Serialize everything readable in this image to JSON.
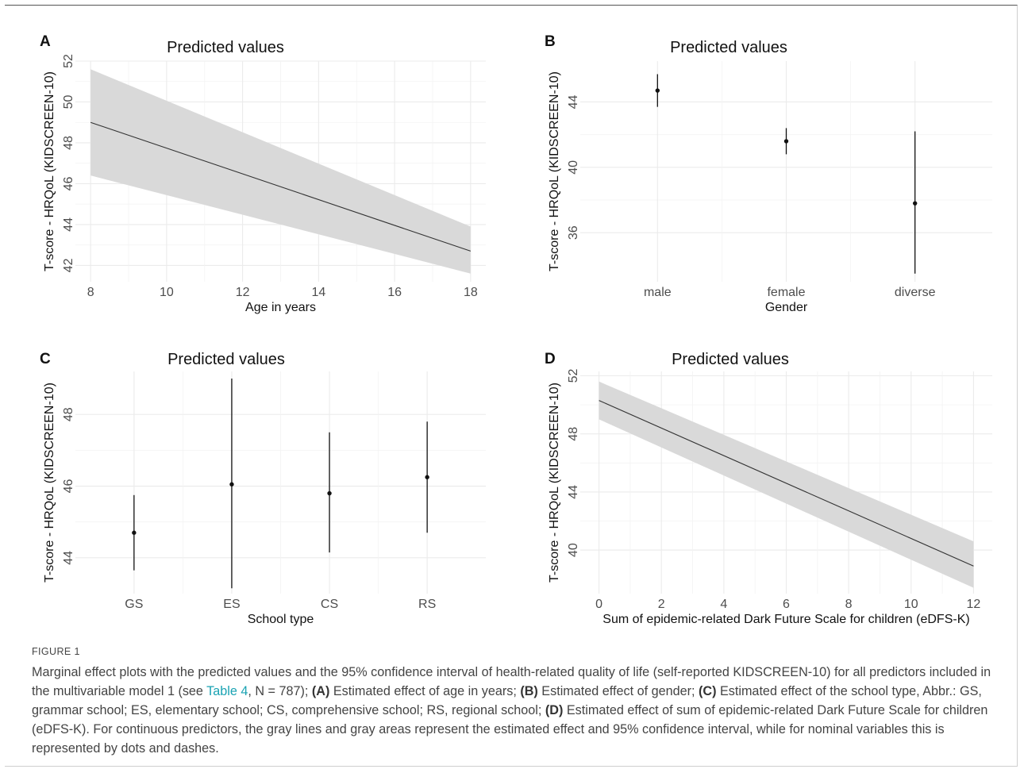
{
  "figure": {
    "label": "FIGURE 1",
    "caption": {
      "intro": "Marginal effect plots with the predicted values and the 95% confidence interval of health-related quality of life (self-reported KIDSCREEN-10) for all predictors included in the multivariable model 1 (see ",
      "table_link": "Table 4",
      "n_text": ", N = 787); ",
      "a_label": "(A)",
      "a_text": " Estimated effect of age in years; ",
      "b_label": "(B)",
      "b_text": " Estimated effect of gender; ",
      "c_label": "(C)",
      "c_text": " Estimated effect of the school type, Abbr.: GS, grammar school; ES, elementary school; CS, comprehensive school; RS, regional school; ",
      "d_label": "(D)",
      "d_text": " Estimated effect of sum of epidemic-related Dark Future Scale for children (eDFS-K). For continuous predictors, the gray lines and gray areas represent the estimated effect and 95% confidence interval, while for nominal variables this is represented by dots and dashes."
    },
    "colors": {
      "ribbon": "#d9d9d9",
      "line": "#333333",
      "grid": "#ebebeb",
      "link": "#1aa3b3"
    }
  },
  "chart_data": [
    {
      "panel": "A",
      "type": "line",
      "title": "Predicted values",
      "xlabel": "Age in years",
      "ylabel": "T-score - HRQoL (KIDSCREEN-10)",
      "xlim": [
        7.6,
        18.4
      ],
      "ylim": [
        41.2,
        52.0
      ],
      "xticks": [
        8,
        10,
        12,
        14,
        16,
        18
      ],
      "yticks": [
        42,
        44,
        46,
        48,
        50,
        52
      ],
      "series": [
        {
          "x": [
            8,
            18
          ],
          "y": [
            49.0,
            42.7
          ],
          "lower": [
            46.4,
            41.6
          ],
          "upper": [
            51.6,
            43.9
          ]
        }
      ],
      "grid": true
    },
    {
      "panel": "B",
      "type": "scatter",
      "title": "Predicted values",
      "xlabel": "Gender",
      "ylabel": "T-score - HRQoL (KIDSCREEN-10)",
      "categories": [
        "male",
        "female",
        "diverse"
      ],
      "ylim": [
        33.0,
        46.5
      ],
      "yticks": [
        36,
        40,
        44
      ],
      "values": [
        44.7,
        41.6,
        37.8
      ],
      "lower": [
        43.7,
        40.8,
        33.5
      ],
      "upper": [
        45.7,
        42.4,
        42.2
      ],
      "grid": true
    },
    {
      "panel": "C",
      "type": "scatter",
      "title": "Predicted values",
      "xlabel": "School type",
      "ylabel": "T-score - HRQoL (KIDSCREEN-10)",
      "categories": [
        "GS",
        "ES",
        "CS",
        "RS"
      ],
      "ylim": [
        43.0,
        49.2
      ],
      "yticks": [
        44,
        46,
        48
      ],
      "values": [
        44.7,
        46.05,
        45.8,
        46.25
      ],
      "lower": [
        43.65,
        43.15,
        44.15,
        44.7
      ],
      "upper": [
        45.75,
        49.0,
        47.5,
        47.8
      ],
      "grid": true
    },
    {
      "panel": "D",
      "type": "line",
      "title": "Predicted values",
      "xlabel": "Sum of epidemic-related Dark Future Scale for children (eDFS-K)",
      "ylabel": "T-score - HRQoL (KIDSCREEN-10)",
      "xlim": [
        -0.6,
        12.6
      ],
      "ylim": [
        37.0,
        52.3
      ],
      "xticks": [
        0,
        2,
        4,
        6,
        8,
        10,
        12
      ],
      "yticks": [
        40,
        44,
        48,
        52
      ],
      "series": [
        {
          "x": [
            0,
            12
          ],
          "y": [
            50.3,
            38.9
          ],
          "lower": [
            49.0,
            37.4
          ],
          "upper": [
            51.6,
            40.6
          ]
        }
      ],
      "grid": true
    }
  ]
}
